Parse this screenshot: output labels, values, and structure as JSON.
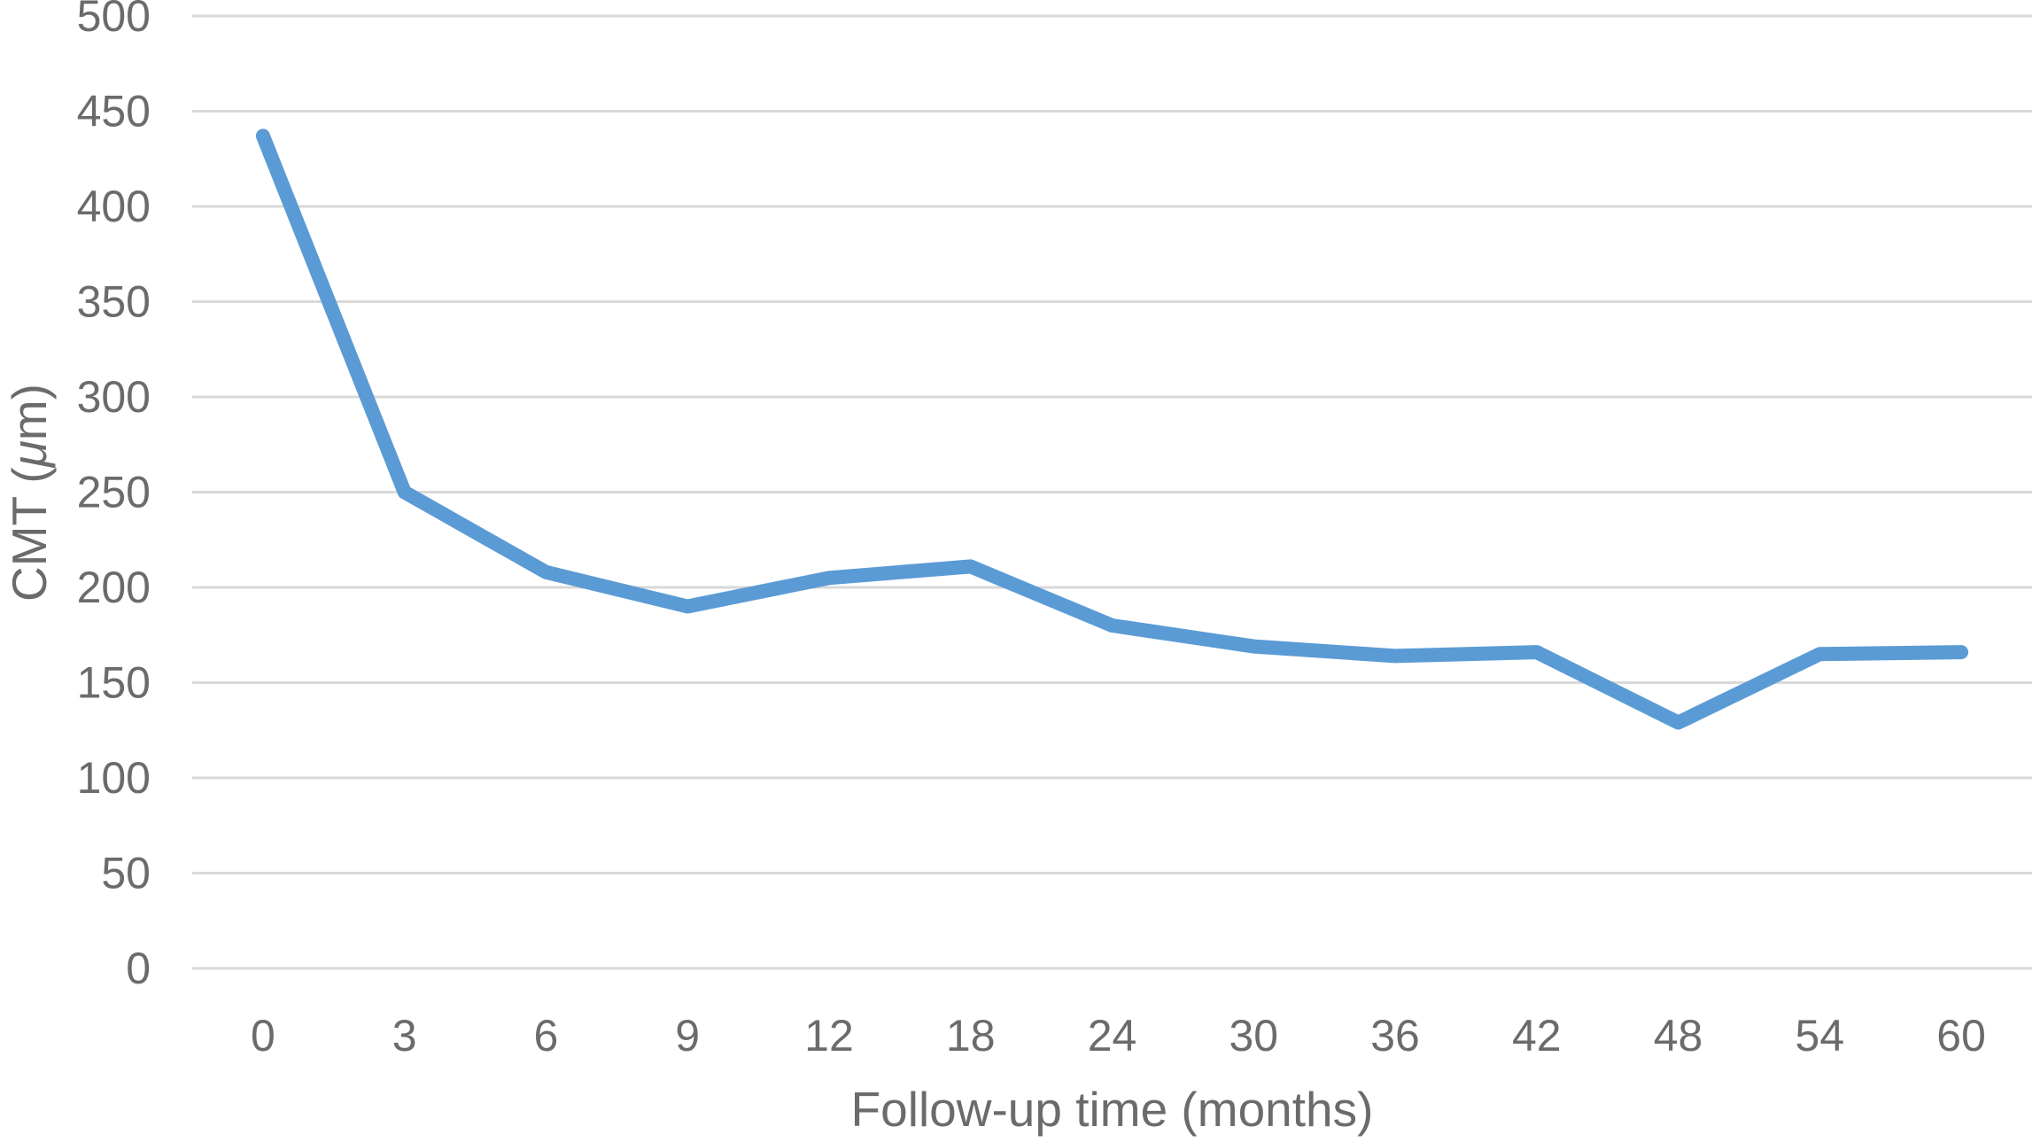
{
  "chart_data": {
    "type": "line",
    "title": "",
    "xlabel": "Follow-up time (months)",
    "ylabel": "CMT (μm)",
    "ylabel_parts": {
      "prefix": "CMT (",
      "mu": "μ",
      "suffix": "m)"
    },
    "categories": [
      "0",
      "3",
      "6",
      "9",
      "12",
      "18",
      "24",
      "30",
      "36",
      "42",
      "48",
      "54",
      "60"
    ],
    "series": [
      {
        "name": "CMT",
        "values": [
          437,
          250,
          208,
          190,
          205,
          211,
          180,
          169,
          164,
          166,
          129,
          165,
          166
        ]
      }
    ],
    "y_ticks": [
      0,
      50,
      100,
      150,
      200,
      250,
      300,
      350,
      400,
      450,
      500
    ],
    "ylim": [
      0,
      500
    ],
    "grid": "horizontal-only",
    "legend": "none",
    "markers": "none",
    "line_color": "#5B9BD5",
    "grid_color": "#D9D9D9",
    "text_color": "#6b6b6b",
    "background_color": "#ffffff"
  }
}
